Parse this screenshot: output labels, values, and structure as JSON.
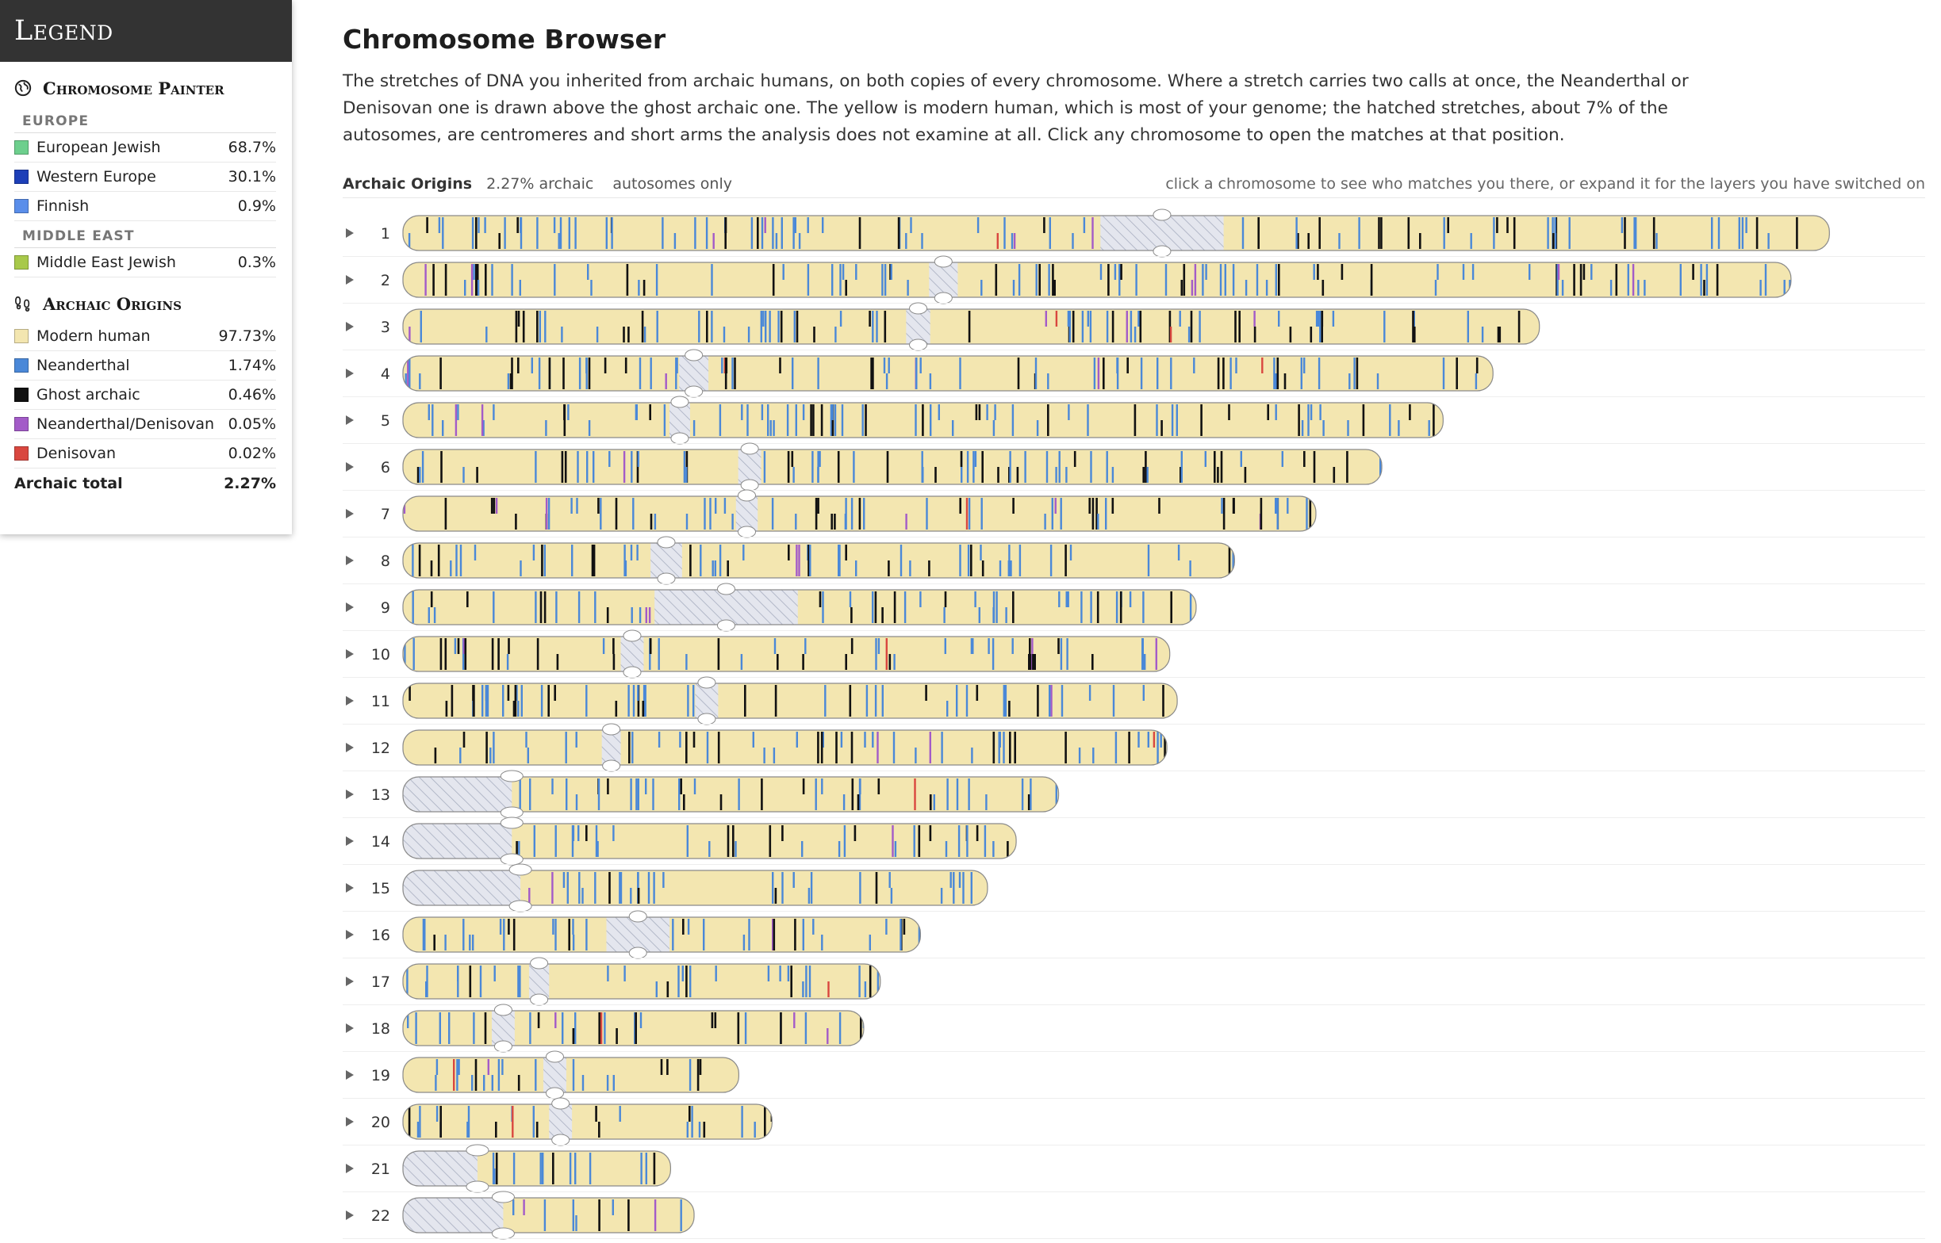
{
  "legend": {
    "title": "Legend",
    "painter": {
      "title": "Chromosome Painter",
      "groups": [
        {
          "name": "EUROPE",
          "items": [
            {
              "label": "European Jewish",
              "value": "68.7%",
              "color": "#6dcf8d"
            },
            {
              "label": "Western Europe",
              "value": "30.1%",
              "color": "#1d3fb8"
            },
            {
              "label": "Finnish",
              "value": "0.9%",
              "color": "#5a8eea"
            }
          ]
        },
        {
          "name": "MIDDLE EAST",
          "items": [
            {
              "label": "Middle East Jewish",
              "value": "0.3%",
              "color": "#a8c94a"
            }
          ]
        }
      ]
    },
    "archaic": {
      "title": "Archaic Origins",
      "items": [
        {
          "label": "Modern human",
          "value": "97.73%",
          "color": "#f3e6b0"
        },
        {
          "label": "Neanderthal",
          "value": "1.74%",
          "color": "#4a88d8"
        },
        {
          "label": "Ghost archaic",
          "value": "0.46%",
          "color": "#111111"
        },
        {
          "label": "Neanderthal/Denisovan",
          "value": "0.05%",
          "color": "#a35bc8"
        },
        {
          "label": "Denisovan",
          "value": "0.02%",
          "color": "#d9473f"
        }
      ],
      "total_label": "Archaic total",
      "total_value": "2.27%"
    }
  },
  "main": {
    "title": "Chromosome Browser",
    "intro": "The stretches of DNA you inherited from archaic humans, on both copies of every chromosome. Where a stretch carries two calls at once, the Neanderthal or Denisovan one is drawn above the ghost archaic one. The yellow is modern human, which is most of your genome; the hatched stretches, about 7% of the autosomes, are centromeres and short arms the analysis does not examine at all. Click any chromosome to open the matches at that position.",
    "toolbar": {
      "title": "Archaic Origins",
      "percent": "2.27% archaic",
      "scope": "autosomes only",
      "hint": "click a chromosome to see who matches you there, or expand it for the layers you have switched on"
    }
  },
  "colors": {
    "modern": "#f3e6b0",
    "neanderthal": "#4a88d8",
    "ghost": "#111111",
    "neanderthal_denisovan": "#a35bc8",
    "denisovan": "#d9473f",
    "hatch_bg": "#e4e6ee",
    "hatch_line": "#a7adbf"
  },
  "chromosomes": [
    {
      "label": "1",
      "length_mb": 248.9,
      "centromere_mb": [
        121.7,
        143.2
      ]
    },
    {
      "label": "2",
      "length_mb": 242.2,
      "centromere_mb": [
        91.8,
        96.8
      ]
    },
    {
      "label": "3",
      "length_mb": 198.3,
      "centromere_mb": [
        87.8,
        92.0
      ]
    },
    {
      "label": "4",
      "length_mb": 190.2,
      "centromere_mb": [
        48.2,
        53.3
      ]
    },
    {
      "label": "5",
      "length_mb": 181.5,
      "centromere_mb": [
        46.5,
        50.1
      ]
    },
    {
      "label": "6",
      "length_mb": 170.8,
      "centromere_mb": [
        58.5,
        62.5
      ]
    },
    {
      "label": "7",
      "length_mb": 159.3,
      "centromere_mb": [
        58.1,
        61.9
      ]
    },
    {
      "label": "8",
      "length_mb": 145.1,
      "centromere_mb": [
        43.2,
        48.7
      ]
    },
    {
      "label": "9",
      "length_mb": 138.4,
      "centromere_mb": [
        43.9,
        68.9
      ]
    },
    {
      "label": "10",
      "length_mb": 133.8,
      "centromere_mb": [
        38.0,
        42.0
      ]
    },
    {
      "label": "11",
      "length_mb": 135.1,
      "centromere_mb": [
        51.0,
        55.0
      ]
    },
    {
      "label": "12",
      "length_mb": 133.3,
      "centromere_mb": [
        34.7,
        38.0
      ]
    },
    {
      "label": "13",
      "length_mb": 114.4,
      "centromere_mb": [
        0,
        19.0
      ]
    },
    {
      "label": "14",
      "length_mb": 107.0,
      "centromere_mb": [
        0,
        19.0
      ]
    },
    {
      "label": "15",
      "length_mb": 102.0,
      "centromere_mb": [
        0,
        20.5
      ]
    },
    {
      "label": "16",
      "length_mb": 90.3,
      "centromere_mb": [
        35.5,
        46.5
      ]
    },
    {
      "label": "17",
      "length_mb": 83.3,
      "centromere_mb": [
        22.0,
        25.5
      ]
    },
    {
      "label": "18",
      "length_mb": 80.4,
      "centromere_mb": [
        15.5,
        19.5
      ]
    },
    {
      "label": "19",
      "length_mb": 58.6,
      "centromere_mb": [
        24.5,
        28.5
      ]
    },
    {
      "label": "20",
      "length_mb": 64.4,
      "centromere_mb": [
        25.5,
        29.5
      ]
    },
    {
      "label": "21",
      "length_mb": 46.7,
      "centromere_mb": [
        0,
        13.0
      ]
    },
    {
      "label": "22",
      "length_mb": 50.8,
      "centromere_mb": [
        0,
        17.5
      ]
    }
  ]
}
